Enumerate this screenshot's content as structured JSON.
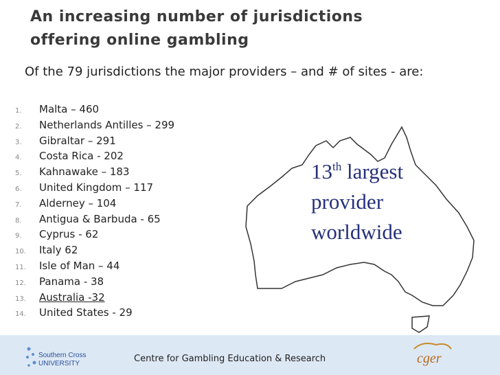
{
  "slide": {
    "title": [
      "An increasing number of jurisdictions",
      "offering online gambling"
    ],
    "intro": "Of the 79 jurisdictions the major providers – and # of sites - are:",
    "items": [
      {
        "number": "1.",
        "text": "Malta – 460"
      },
      {
        "number": "2.",
        "text": "Netherlands Antilles – 299"
      },
      {
        "number": "3.",
        "text": "Gibraltar – 291"
      },
      {
        "number": "4.",
        "text": "Costa Rica - 202"
      },
      {
        "number": "5.",
        "text": "Kahnawake – 183"
      },
      {
        "number": "6.",
        "text": "United Kingdom – 117"
      },
      {
        "number": "7.",
        "text": "Alderney – 104"
      },
      {
        "number": "8.",
        "text": "Antigua & Barbuda - 65"
      },
      {
        "number": "9.",
        "text": "Cyprus - 62"
      },
      {
        "number": "10.",
        "text": "Italy 62"
      },
      {
        "number": "11.",
        "text": "Isle of Man – 44"
      },
      {
        "number": "12.",
        "text": "Panama - 38"
      },
      {
        "number": "13.",
        "text": "Australia -32"
      },
      {
        "number": "14.",
        "text": "United States - 29"
      }
    ],
    "callout": {
      "number": "13",
      "suffix": "th",
      "lines": [
        "largest",
        "provider",
        "worldwide"
      ]
    },
    "footer": {
      "centre": "Centre for Gambling Education & Research",
      "left_logo": [
        "Southern Cross",
        "UNIVERSITY"
      ],
      "right_logo": "cger"
    }
  }
}
